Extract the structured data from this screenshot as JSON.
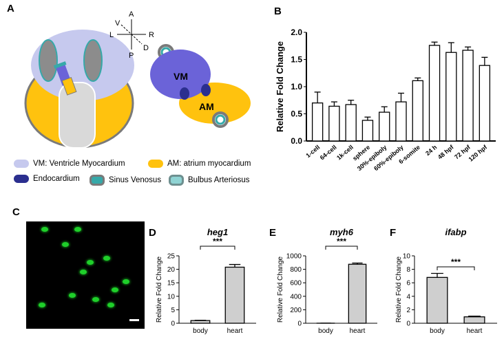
{
  "panels": {
    "A": "A",
    "B": "B",
    "C": "C",
    "D": "D",
    "E": "E",
    "F": "F"
  },
  "axes_labels": {
    "A": "A",
    "P": "P",
    "L": "L",
    "R": "R",
    "V": "V",
    "D": "D"
  },
  "heart_labels": {
    "vm": "VM",
    "am": "AM"
  },
  "legend": {
    "vm": "VM: Ventricle Myocardium",
    "am": "AM: atrium myocardium",
    "endo": "Endocardium",
    "sinus": "Sinus Venosus",
    "bulbus": "Bulbus Arteriosus"
  },
  "colors": {
    "ventricle": "#6b63d8",
    "atrium": "#ffc20e",
    "endocardium": "#2b2f8f",
    "head": "#c6c9ee",
    "teal": "#36a9a9"
  },
  "chart_data": [
    {
      "id": "B",
      "type": "bar",
      "ylabel": "Relative Fold Change",
      "ylim": [
        0,
        2.0
      ],
      "yticks": [
        "0.0",
        "0.5",
        "1.0",
        "1.5",
        "2.0"
      ],
      "categories": [
        "1-cell",
        "64-cell",
        "1k-cell",
        "sphere",
        "30%-epiboly",
        "60%-epiboly",
        "6-somite",
        "24 h",
        "48 hpf",
        "72 hpf",
        "120 hpf"
      ],
      "values": [
        0.7,
        0.64,
        0.67,
        0.38,
        0.53,
        0.72,
        1.11,
        1.76,
        1.63,
        1.67,
        1.39
      ],
      "errors": [
        0.2,
        0.08,
        0.08,
        0.06,
        0.1,
        0.16,
        0.05,
        0.06,
        0.18,
        0.06,
        0.15
      ]
    },
    {
      "id": "D",
      "type": "bar",
      "title": "heg1",
      "ylabel": "Relative Fold Change",
      "ylim": [
        0,
        25
      ],
      "yticks": [
        "0",
        "5",
        "10",
        "15",
        "20",
        "25"
      ],
      "categories": [
        "body",
        "heart"
      ],
      "values": [
        1.0,
        20.8
      ],
      "errors": [
        0.1,
        1.0
      ],
      "significance": "***"
    },
    {
      "id": "E",
      "type": "bar",
      "title": "myh6",
      "ylabel": "Relative Fold Change",
      "ylim": [
        0,
        1000
      ],
      "yticks": [
        "0",
        "200",
        "400",
        "600",
        "800",
        "1000"
      ],
      "categories": [
        "body",
        "heart"
      ],
      "values": [
        1,
        875
      ],
      "errors": [
        0.5,
        18
      ],
      "significance": "***"
    },
    {
      "id": "F",
      "type": "bar",
      "title": "ifabp",
      "ylabel": "Relative Fold Change",
      "ylim": [
        0,
        10
      ],
      "yticks": [
        "0",
        "2",
        "4",
        "6",
        "8",
        "10"
      ],
      "categories": [
        "body",
        "heart"
      ],
      "values": [
        6.8,
        0.95
      ],
      "errors": [
        0.6,
        0.1
      ],
      "significance": "***"
    }
  ]
}
